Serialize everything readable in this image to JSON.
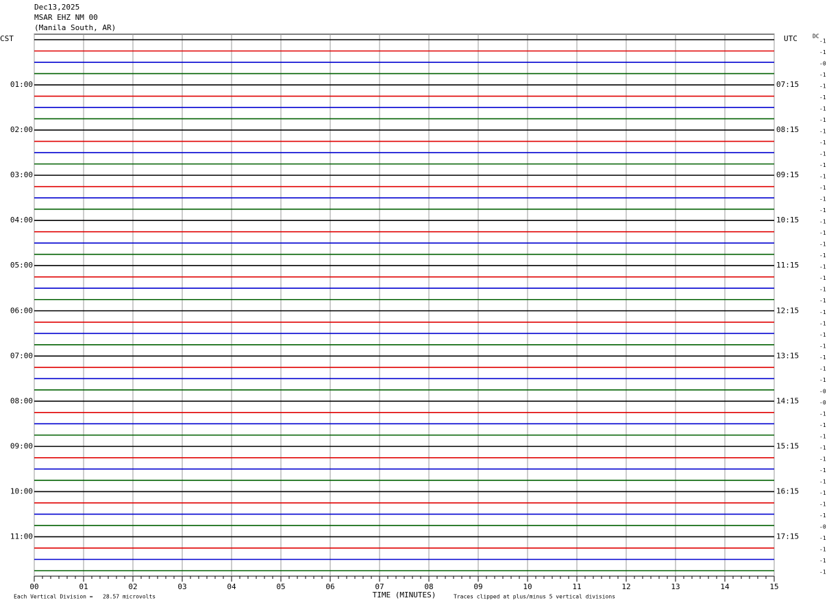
{
  "header": {
    "date": "Dec13,2025",
    "station": "MSAR EHZ NM 00",
    "location": "(Manila South, AR)"
  },
  "left_label": "CST",
  "right_label": "UTC",
  "dc_label": "DC",
  "cst_times": [
    "01:00",
    "02:00",
    "03:00",
    "04:00",
    "05:00",
    "06:00",
    "07:00",
    "08:00",
    "09:00",
    "10:00",
    "11:00"
  ],
  "utc_times": [
    "07:15",
    "08:15",
    "09:15",
    "10:15",
    "11:15",
    "12:15",
    "13:15",
    "14:15",
    "15:15",
    "16:15",
    "17:15"
  ],
  "dc_offsets": [
    "-1",
    "-1",
    "-0",
    "-1",
    "-1",
    "-1",
    "-1",
    "-1",
    "-1",
    "-1",
    "-1",
    "-1",
    "-1",
    "-1",
    "-1",
    "-1",
    "-1",
    "-1",
    "-1",
    "-1",
    "-1",
    "-1",
    "-1",
    "-1",
    "-1",
    "-1",
    "-1",
    "-1",
    "-1",
    "-1",
    "-1",
    "-0",
    "-0",
    "-1",
    "-1",
    "-1",
    "-1",
    "-1",
    "-1",
    "-1",
    "-1",
    "-1",
    "-1",
    "-0",
    "-1",
    "-1",
    "-1",
    "-1"
  ],
  "trace_colors": [
    "#000000",
    "#e00000",
    "#0000d0",
    "#006000"
  ],
  "x_axis": {
    "title": "TIME (MINUTES)",
    "ticks": [
      "00",
      "01",
      "02",
      "03",
      "04",
      "05",
      "06",
      "07",
      "08",
      "09",
      "10",
      "11",
      "12",
      "13",
      "14",
      "15"
    ]
  },
  "footer": {
    "division": "Each Vertical Division =   28.57 microvolts",
    "clip": "Traces clipped at plus/minus 5 vertical divisions"
  }
}
